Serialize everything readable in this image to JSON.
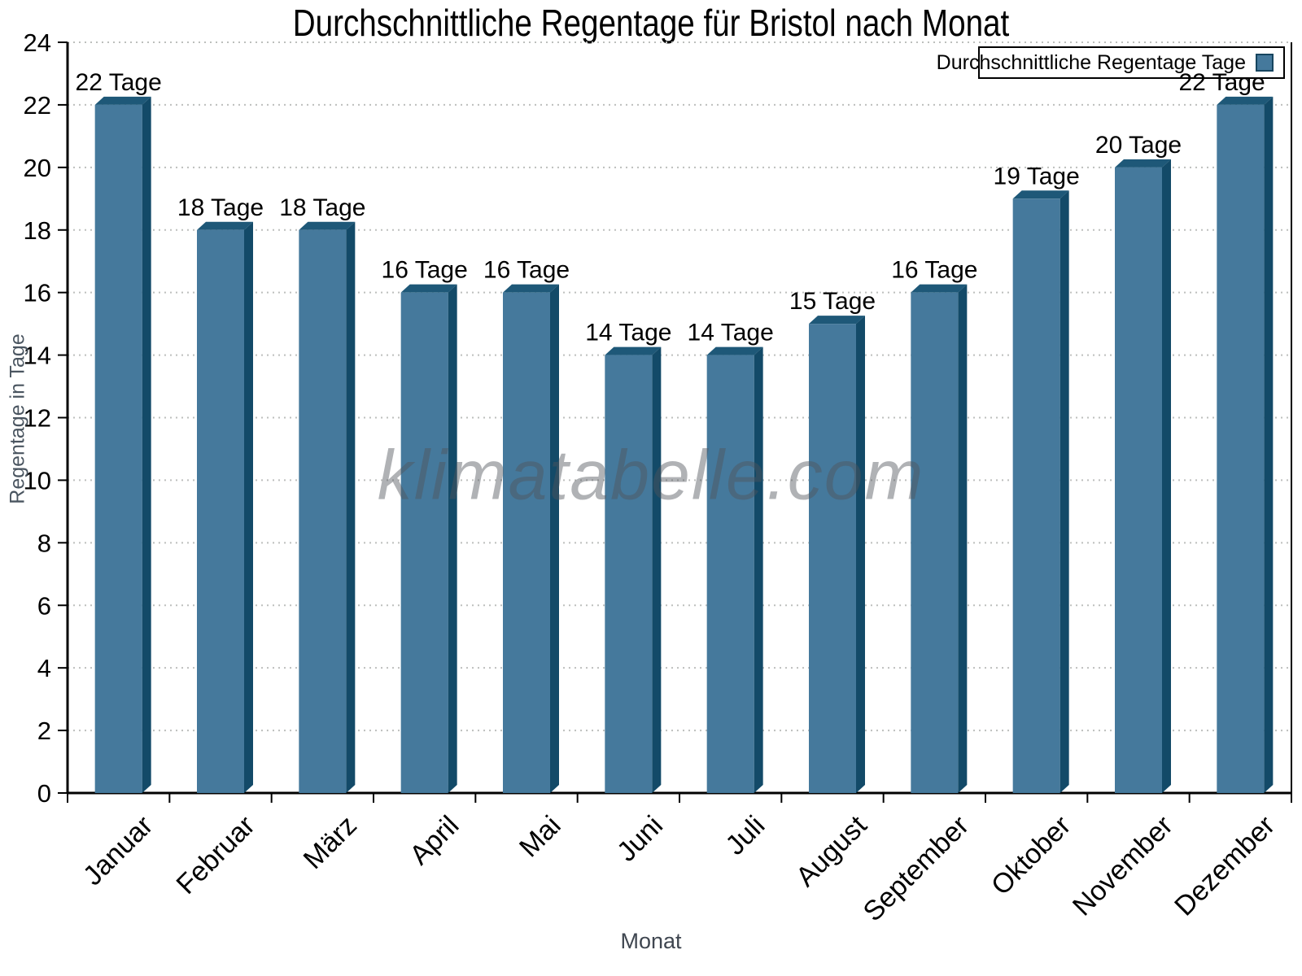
{
  "chart_data": {
    "type": "bar",
    "title": "Durchschnittliche Regentage für Bristol nach Monat",
    "xlabel": "Monat",
    "ylabel": "Regentage in Tage",
    "categories": [
      "Januar",
      "Februar",
      "März",
      "April",
      "Mai",
      "Juni",
      "Juli",
      "August",
      "September",
      "Oktober",
      "November",
      "Dezember"
    ],
    "values": [
      22,
      18,
      18,
      16,
      16,
      14,
      14,
      15,
      16,
      19,
      20,
      22
    ],
    "bar_labels": [
      "22 Tage",
      "18 Tage",
      "18 Tage",
      "16 Tage",
      "16 Tage",
      "14 Tage",
      "14 Tage",
      "15 Tage",
      "16 Tage",
      "19 Tage",
      "20 Tage",
      "22 Tage"
    ],
    "ylim": [
      0,
      24
    ],
    "yticks": [
      0,
      2,
      4,
      6,
      8,
      10,
      12,
      14,
      16,
      18,
      20,
      22,
      24
    ],
    "grid": "horizontal-dotted",
    "legend": {
      "label": "Durchschnittliche Regentage Tage",
      "position": "top-right"
    },
    "watermark": "klimatabelle.com",
    "colors": {
      "bar_face": "#45799C",
      "bar_top": "#1E5878",
      "bar_side": "#134A68",
      "grid": "#BDBFBD",
      "axis": "#000000",
      "tick_label": "#000000",
      "axis_title": "#4A5560",
      "legend_swatch_border": "#16455F"
    }
  }
}
